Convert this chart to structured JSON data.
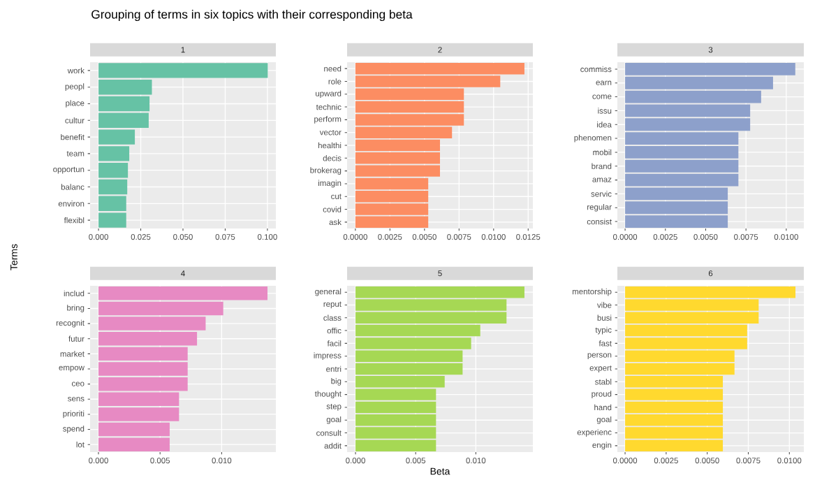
{
  "chart_data": [
    {
      "type": "bar",
      "orientation": "horizontal",
      "title": "1",
      "ylabel": "Terms",
      "annotations": [
        "Grouping of terms in six topics with their corresponding beta"
      ],
      "grid": true,
      "color": "#66c2a5",
      "categories": [
        "work",
        "peopl",
        "place",
        "cultur",
        "benefit",
        "team",
        "opportun",
        "balanc",
        "environ",
        "flexibl"
      ],
      "values": [
        0.1002,
        0.0316,
        0.0302,
        0.0297,
        0.0215,
        0.0182,
        0.0174,
        0.017,
        0.0164,
        0.0164
      ],
      "xlim": [
        -0.005,
        0.105
      ],
      "xticks": [
        {
          "value": 0,
          "label": "0.000"
        },
        {
          "value": 0.025,
          "label": "0.025"
        },
        {
          "value": 0.05,
          "label": "0.050"
        },
        {
          "value": 0.075,
          "label": "0.075"
        },
        {
          "value": 0.1,
          "label": "0.100"
        }
      ]
    },
    {
      "type": "bar",
      "orientation": "horizontal",
      "title": "2",
      "grid": true,
      "color": "#fc8d62",
      "categories": [
        "need",
        "role",
        "upward",
        "technic",
        "perform",
        "vector",
        "healthi",
        "decis",
        "brokerag",
        "imagin",
        "cut",
        "covid",
        "ask"
      ],
      "values": [
        0.01223,
        0.01048,
        0.00785,
        0.00785,
        0.00785,
        0.00699,
        0.00612,
        0.00612,
        0.00612,
        0.00527,
        0.00527,
        0.00527,
        0.00527
      ],
      "xlim": [
        -0.0006,
        0.01284
      ],
      "xticks": [
        {
          "value": 0,
          "label": "0.0000"
        },
        {
          "value": 0.0025,
          "label": "0.0025"
        },
        {
          "value": 0.005,
          "label": "0.0050"
        },
        {
          "value": 0.0075,
          "label": "0.0075"
        },
        {
          "value": 0.01,
          "label": "0.0100"
        },
        {
          "value": 0.0125,
          "label": "0.0125"
        }
      ]
    },
    {
      "type": "bar",
      "orientation": "horizontal",
      "title": "3",
      "grid": true,
      "color": "#8da0cb",
      "categories": [
        "commiss",
        "earn",
        "come",
        "issu",
        "idea",
        "phenomen",
        "mobil",
        "brand",
        "amaz",
        "servic",
        "regular",
        "consist"
      ],
      "values": [
        0.01056,
        0.00918,
        0.00844,
        0.00776,
        0.00776,
        0.00703,
        0.00703,
        0.00703,
        0.00703,
        0.00637,
        0.00637,
        0.00637
      ],
      "xlim": [
        -0.00048,
        0.01109
      ],
      "xticks": [
        {
          "value": 0,
          "label": "0.0000"
        },
        {
          "value": 0.0025,
          "label": "0.0025"
        },
        {
          "value": 0.005,
          "label": "0.0050"
        },
        {
          "value": 0.0075,
          "label": "0.0075"
        },
        {
          "value": 0.01,
          "label": "0.0100"
        }
      ]
    },
    {
      "type": "bar",
      "orientation": "horizontal",
      "title": "4",
      "grid": true,
      "color": "#e78ac3",
      "categories": [
        "includ",
        "bring",
        "recognit",
        "futur",
        "market",
        "empow",
        "ceo",
        "sens",
        "prioriti",
        "spend",
        "lot"
      ],
      "values": [
        0.01372,
        0.01013,
        0.0087,
        0.008,
        0.00724,
        0.00724,
        0.00724,
        0.00654,
        0.00654,
        0.00578,
        0.00578
      ],
      "xlim": [
        -0.00068,
        0.0144
      ],
      "xticks": [
        {
          "value": 0,
          "label": "0.000"
        },
        {
          "value": 0.005,
          "label": "0.005"
        },
        {
          "value": 0.01,
          "label": "0.010"
        }
      ]
    },
    {
      "type": "bar",
      "orientation": "horizontal",
      "title": "5",
      "xlabel": "Beta",
      "grid": true,
      "color": "#a6d854",
      "categories": [
        "general",
        "reput",
        "class",
        "offic",
        "facil",
        "impress",
        "entri",
        "big",
        "thought",
        "step",
        "goal",
        "consult",
        "addit"
      ],
      "values": [
        0.01404,
        0.01255,
        0.01255,
        0.01037,
        0.00961,
        0.0089,
        0.0089,
        0.00741,
        0.00669,
        0.00669,
        0.00669,
        0.00669,
        0.00669
      ],
      "xlim": [
        -0.0007,
        0.01474
      ],
      "xticks": [
        {
          "value": 0,
          "label": "0.000"
        },
        {
          "value": 0.005,
          "label": "0.005"
        },
        {
          "value": 0.01,
          "label": "0.010"
        }
      ]
    },
    {
      "type": "bar",
      "orientation": "horizontal",
      "title": "6",
      "grid": true,
      "color": "#ffd92f",
      "categories": [
        "mentorship",
        "vibe",
        "busi",
        "typic",
        "fast",
        "person",
        "expert",
        "stabl",
        "proud",
        "hand",
        "goal",
        "experienc",
        "engin"
      ],
      "values": [
        0.01037,
        0.00813,
        0.00813,
        0.00743,
        0.00743,
        0.00666,
        0.00666,
        0.00595,
        0.00595,
        0.00595,
        0.00595,
        0.00595,
        0.00595
      ],
      "xlim": [
        -0.00047,
        0.01088
      ],
      "xticks": [
        {
          "value": 0,
          "label": "0.0000"
        },
        {
          "value": 0.0025,
          "label": "0.0025"
        },
        {
          "value": 0.005,
          "label": "0.0050"
        },
        {
          "value": 0.0075,
          "label": "0.0075"
        },
        {
          "value": 0.01,
          "label": "0.0100"
        }
      ]
    }
  ]
}
